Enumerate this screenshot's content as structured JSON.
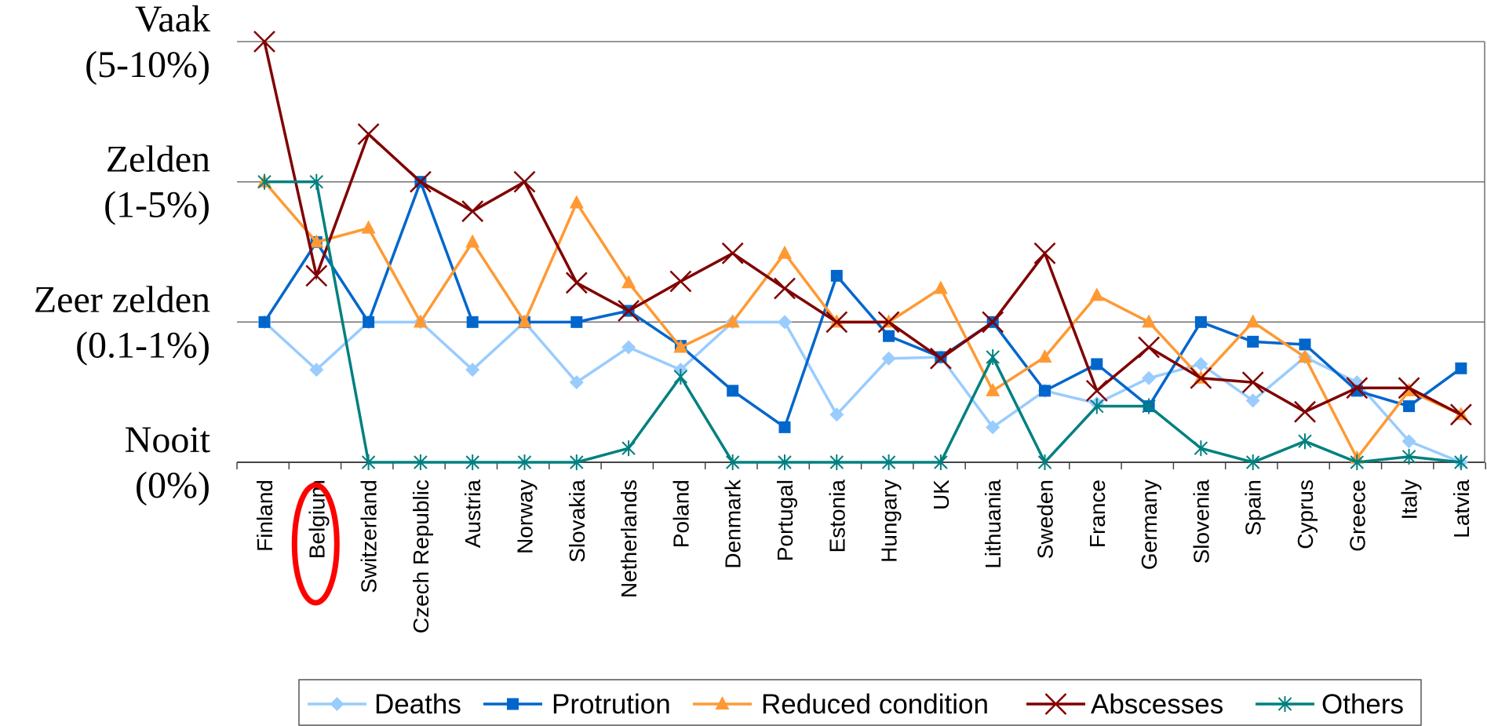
{
  "chart_data": {
    "type": "line",
    "title": "",
    "xlabel": "",
    "ylabel": "",
    "ylim": [
      0,
      3
    ],
    "y_ticks": [
      {
        "value": 3,
        "line1": "Vaak",
        "line2": "(5-10%)"
      },
      {
        "value": 2,
        "line1": "Zelden",
        "line2": "(1-5%)"
      },
      {
        "value": 1,
        "line1": "Zeer zelden",
        "line2": "(0.1-1%)"
      },
      {
        "value": 0,
        "line1": "Nooit",
        "line2": "(0%)"
      }
    ],
    "categories": [
      "Finland",
      "Belgium",
      "Switzerland",
      "Czech Republic",
      "Austria",
      "Norway",
      "Slovakia",
      "Netherlands",
      "Poland",
      "Denmark",
      "Portugal",
      "Estonia",
      "Hungary",
      "UK",
      "Lithuania",
      "Sweden",
      "France",
      "Germany",
      "Slovenia",
      "Spain",
      "Cyprus",
      "Greece",
      "Italy",
      "Latvia"
    ],
    "highlighted_category": "Belgium",
    "highlight_color": "#ff0000",
    "grid": true,
    "legend_position": "bottom",
    "series": [
      {
        "name": "Deaths",
        "color": "#99ccff",
        "marker": "diamond",
        "values": [
          1.0,
          0.66,
          1.0,
          1.0,
          0.66,
          1.0,
          0.57,
          0.82,
          0.66,
          1.0,
          1.0,
          0.34,
          0.74,
          0.75,
          0.25,
          0.51,
          0.42,
          0.6,
          0.7,
          0.44,
          0.75,
          0.57,
          0.15,
          0.0
        ]
      },
      {
        "name": "Protrution",
        "color": "#0066cc",
        "marker": "square",
        "values": [
          1.0,
          1.57,
          1.0,
          2.0,
          1.0,
          1.0,
          1.0,
          1.08,
          0.83,
          0.51,
          0.25,
          1.33,
          0.9,
          0.75,
          1.0,
          0.51,
          0.7,
          0.4,
          1.0,
          0.86,
          0.84,
          0.51,
          0.4,
          0.67
        ]
      },
      {
        "name": "Reduced condition",
        "color": "#ff9933",
        "marker": "triangle",
        "values": [
          2.0,
          1.57,
          1.67,
          1.0,
          1.57,
          1.0,
          1.85,
          1.28,
          0.82,
          1.0,
          1.49,
          1.0,
          1.0,
          1.24,
          0.51,
          0.75,
          1.19,
          1.0,
          0.6,
          1.0,
          0.75,
          0.03,
          0.51,
          0.34
        ]
      },
      {
        "name": "Abscesses",
        "color": "#800000",
        "marker": "x",
        "values": [
          3.0,
          1.33,
          2.34,
          2.0,
          1.79,
          2.0,
          1.28,
          1.08,
          1.29,
          1.49,
          1.24,
          1.0,
          1.0,
          0.74,
          1.0,
          1.49,
          0.51,
          0.82,
          0.6,
          0.57,
          0.36,
          0.53,
          0.53,
          0.34
        ]
      },
      {
        "name": "Others",
        "color": "#008080",
        "marker": "star",
        "values": [
          2.0,
          2.0,
          0.0,
          0.0,
          0.0,
          0.0,
          0.0,
          0.1,
          0.61,
          0.0,
          0.0,
          0.0,
          0.0,
          0.0,
          0.75,
          0.0,
          0.4,
          0.4,
          0.1,
          0.0,
          0.15,
          0.0,
          0.04,
          0.0
        ]
      }
    ]
  }
}
